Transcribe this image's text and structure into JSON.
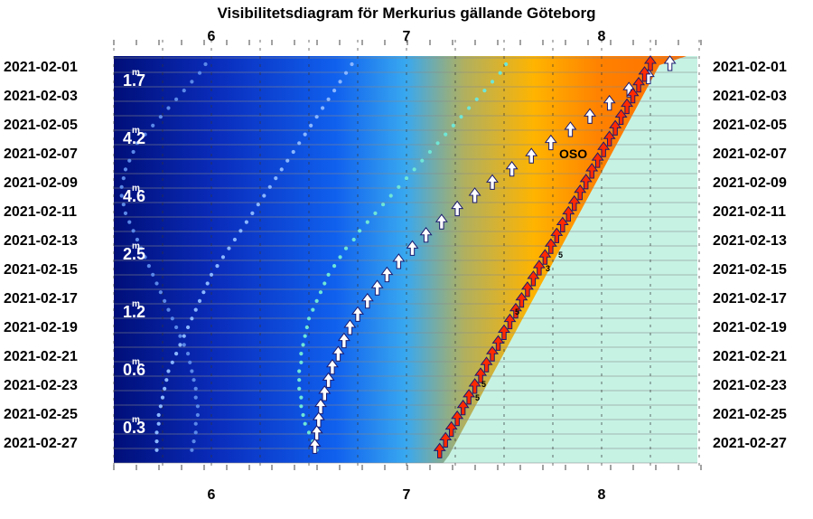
{
  "chart_data": {
    "type": "line",
    "title": "Visibilitetsdiagram för Merkurius gällande Göteborg",
    "x_ticks": [
      6,
      7,
      8
    ],
    "xlim": [
      5.5,
      8.55
    ],
    "dates": [
      "2021-02-01",
      "2021-02-03",
      "2021-02-05",
      "2021-02-07",
      "2021-02-09",
      "2021-02-11",
      "2021-02-13",
      "2021-02-15",
      "2021-02-17",
      "2021-02-19",
      "2021-02-21",
      "2021-02-23",
      "2021-02-25",
      "2021-02-27"
    ],
    "magnitudes": [
      {
        "date": "2021-02-01",
        "value": "1.7"
      },
      {
        "date": "2021-02-05",
        "value": "4.2"
      },
      {
        "date": "2021-02-09",
        "value": "4.6"
      },
      {
        "date": "2021-02-13",
        "value": "2.5"
      },
      {
        "date": "2021-02-17",
        "value": "1.2"
      },
      {
        "date": "2021-02-21",
        "value": "0.6"
      },
      {
        "date": "2021-02-25",
        "value": "0.3"
      }
    ],
    "mag_unit": "m",
    "direction_label": "OSO",
    "small_labels": [
      "5",
      "3",
      "5",
      "5",
      "5"
    ],
    "series": [
      {
        "name": "",
        "kind": "dots-light",
        "x": [
          7.51,
          7.48,
          7.44,
          7.4,
          7.36,
          7.32,
          7.28,
          7.24,
          7.2,
          7.16,
          7.12,
          7.08,
          7.04,
          7.0,
          6.96,
          6.92,
          6.88,
          6.84,
          6.8,
          6.76,
          6.73,
          6.69,
          6.66,
          6.63,
          6.6,
          6.58,
          6.56,
          6.54,
          6.52,
          6.5,
          6.49,
          6.48,
          6.47,
          6.46,
          6.46,
          6.45,
          6.45,
          6.45,
          6.46,
          6.46,
          6.47,
          6.48,
          6.5,
          6.52,
          6.54
        ]
      },
      {
        "name": "",
        "kind": "dots-mid",
        "x": [
          6.72,
          6.69,
          6.66,
          6.63,
          6.6,
          6.57,
          6.54,
          6.51,
          6.48,
          6.45,
          6.42,
          6.39,
          6.36,
          6.33,
          6.3,
          6.27,
          6.24,
          6.21,
          6.18,
          6.15,
          6.12,
          6.09,
          6.06,
          6.03,
          6.0,
          5.98,
          5.96,
          5.94,
          5.92,
          5.9,
          5.88,
          5.86,
          5.84,
          5.82,
          5.8,
          5.78,
          5.77,
          5.76,
          5.75,
          5.74,
          5.73,
          5.73,
          5.72,
          5.72,
          5.72
        ]
      },
      {
        "name": "",
        "kind": "dots-deep",
        "x": [
          5.97,
          5.94,
          5.9,
          5.86,
          5.82,
          5.78,
          5.74,
          5.7,
          5.66,
          5.62,
          5.6,
          5.58,
          5.56,
          5.55,
          5.54,
          5.54,
          5.55,
          5.56,
          5.58,
          5.6,
          5.62,
          5.64,
          5.66,
          5.68,
          5.7,
          5.72,
          5.74,
          5.76,
          5.78,
          5.8,
          5.82,
          5.84,
          5.86,
          5.88,
          5.89,
          5.9,
          5.91,
          5.92,
          5.92,
          5.93,
          5.93,
          5.92,
          5.92,
          5.91,
          5.9
        ]
      },
      {
        "name": "",
        "kind": "arrows-white",
        "x": [
          8.35,
          8.24,
          8.14,
          8.04,
          7.94,
          7.84,
          7.74,
          7.64,
          7.54,
          7.44,
          7.35,
          7.26,
          7.18,
          7.1,
          7.03,
          6.96,
          6.9,
          6.85,
          6.8,
          6.75,
          6.71,
          6.68,
          6.65,
          6.62,
          6.6,
          6.58,
          6.56,
          6.55,
          6.54,
          6.53
        ]
      },
      {
        "name": "",
        "kind": "arrows-red",
        "x": [
          8.25,
          8.22,
          8.19,
          8.16,
          8.13,
          8.1,
          8.07,
          8.04,
          8.01,
          7.98,
          7.95,
          7.92,
          7.89,
          7.86,
          7.83,
          7.8,
          7.77,
          7.74,
          7.71,
          7.68,
          7.65,
          7.62,
          7.59,
          7.56,
          7.53,
          7.5,
          7.47,
          7.44,
          7.41,
          7.38,
          7.35,
          7.32,
          7.29,
          7.26,
          7.23,
          7.2,
          7.17
        ]
      }
    ]
  }
}
